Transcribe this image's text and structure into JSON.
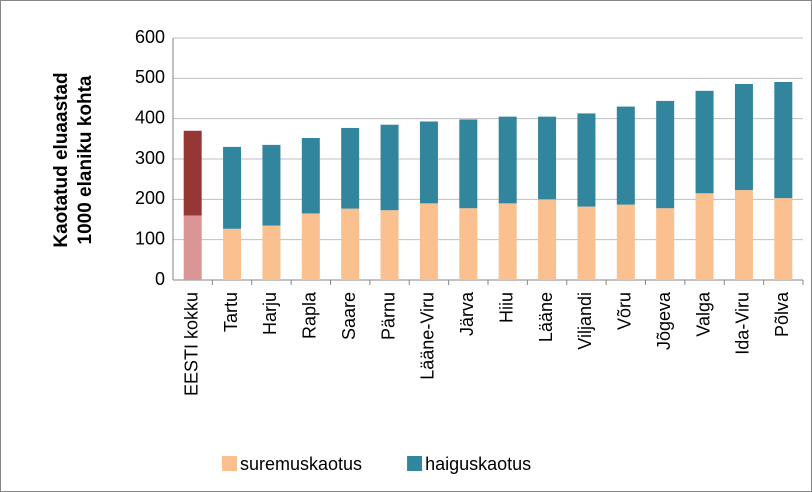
{
  "chart_data": {
    "type": "stacked_bar",
    "y_label": [
      "Kaotatud eluaastad",
      "1000 elaniku kohta"
    ],
    "categories": [
      "EESTI kokku",
      "Tartu",
      "Harju",
      "Rapla",
      "Saare",
      "Pärnu",
      "Lääne-Viru",
      "Järva",
      "Hiiu",
      "Lääne",
      "Viljandi",
      "Võru",
      "Jõgeva",
      "Valga",
      "Ida-Viru",
      "Põlva"
    ],
    "series": [
      {
        "name": "suremuskaotus",
        "color": "#fac090",
        "colors": [
          "#d99694",
          "#fac090",
          "#fac090",
          "#fac090",
          "#fac090",
          "#fac090",
          "#fac090",
          "#fac090",
          "#fac090",
          "#fac090",
          "#fac090",
          "#fac090",
          "#fac090",
          "#fac090",
          "#fac090",
          "#fac090"
        ],
        "values": [
          160,
          127,
          135,
          165,
          177,
          173,
          190,
          178,
          190,
          200,
          182,
          187,
          178,
          215,
          223,
          203
        ]
      },
      {
        "name": "haiguskaotus",
        "color": "#31859c",
        "colors": [
          "#953735",
          "#31859c",
          "#31859c",
          "#31859c",
          "#31859c",
          "#31859c",
          "#31859c",
          "#31859c",
          "#31859c",
          "#31859c",
          "#31859c",
          "#31859c",
          "#31859c",
          "#31859c",
          "#31859c",
          "#31859c"
        ],
        "values": [
          210,
          203,
          200,
          187,
          200,
          212,
          203,
          220,
          215,
          205,
          231,
          243,
          266,
          254,
          263,
          288
        ]
      }
    ],
    "ylim": [
      0,
      600
    ],
    "yticks": [
      0,
      100,
      200,
      300,
      400,
      500,
      600
    ],
    "grid": true,
    "legend": "bottom"
  }
}
